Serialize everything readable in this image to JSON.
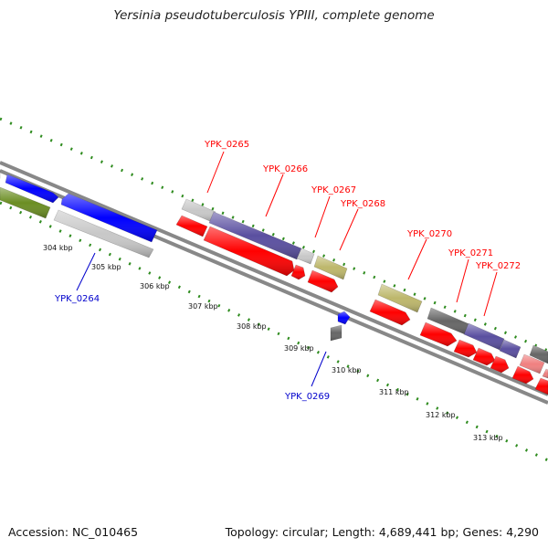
{
  "title": "Yersinia pseudotuberculosis YPIII, complete genome",
  "footer": {
    "accession": "Accession: NC_010465",
    "summary": "Topology: circular; Length: 4,689,441 bp; Genes: 4,290"
  },
  "colors": {
    "backbone": "#888888",
    "tick": "#2e8b1e",
    "label_top": "#ff0000",
    "label_bottom": "#0000cc",
    "blue": "#0000ff",
    "olive": "#6b8e23",
    "light_gray": "#c8c8c8",
    "slate_blue": "#5a4fa0",
    "red": "#ff0000",
    "khaki": "#bdb76b",
    "dark_gray": "#666666",
    "pink": "#f08080"
  },
  "scale_labels": [
    "304 kbp",
    "305 kbp",
    "306 kbp",
    "307 kbp",
    "308 kbp",
    "309 kbp",
    "310 kbp",
    "311 kbp",
    "312 kbp",
    "313 kbp"
  ],
  "gene_labels": {
    "top": [
      "YPK_0265",
      "YPK_0266",
      "YPK_0267",
      "YPK_0268",
      "YPK_0270",
      "YPK_0271",
      "YPK_0272"
    ],
    "bottom": [
      "YPK_0264",
      "YPK_0269"
    ]
  }
}
